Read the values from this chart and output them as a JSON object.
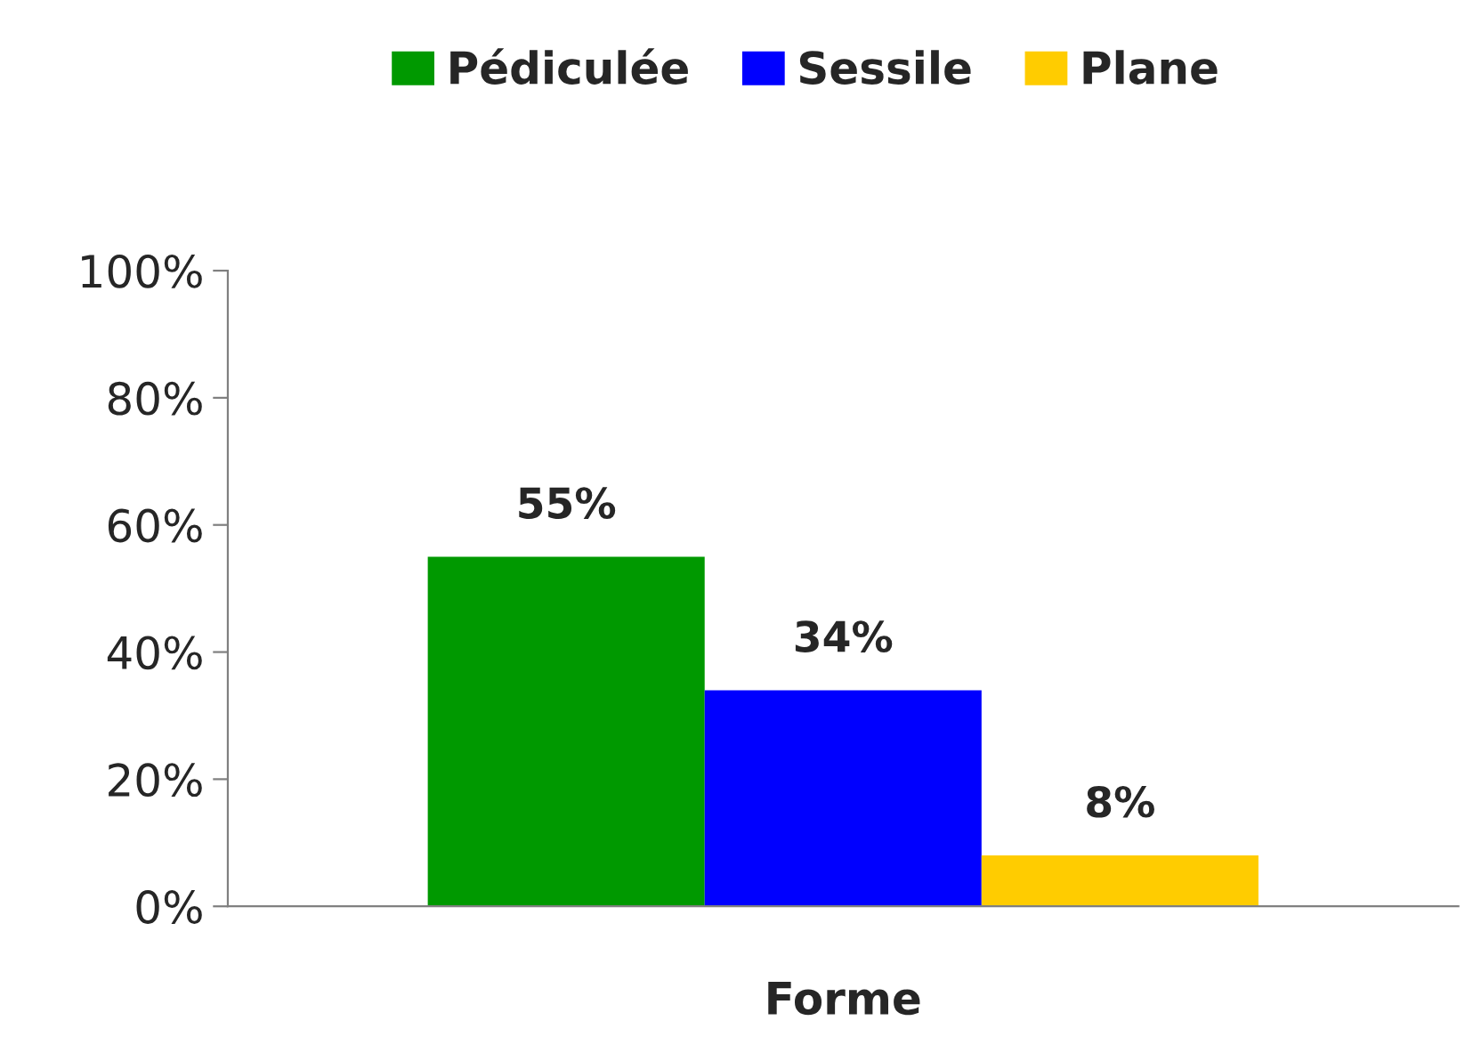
{
  "chart_data": {
    "type": "bar",
    "categories": [
      "Forme"
    ],
    "series": [
      {
        "name": "Pédiculée",
        "color": "#009900",
        "values": [
          55
        ],
        "value_labels": [
          "55%"
        ]
      },
      {
        "name": "Sessile",
        "color": "#0000ff",
        "values": [
          34
        ],
        "value_labels": [
          "34%"
        ]
      },
      {
        "name": "Plane",
        "color": "#ffcc00",
        "values": [
          8
        ],
        "value_labels": [
          "8%"
        ]
      }
    ],
    "ylim": [
      0,
      100
    ],
    "yticks": [
      {
        "value": 0,
        "label": "0%"
      },
      {
        "value": 20,
        "label": "20%"
      },
      {
        "value": 40,
        "label": "40%"
      },
      {
        "value": 60,
        "label": "60%"
      },
      {
        "value": 80,
        "label": "80%"
      },
      {
        "value": 100,
        "label": "100%"
      }
    ],
    "grid": false,
    "legend": "top"
  }
}
